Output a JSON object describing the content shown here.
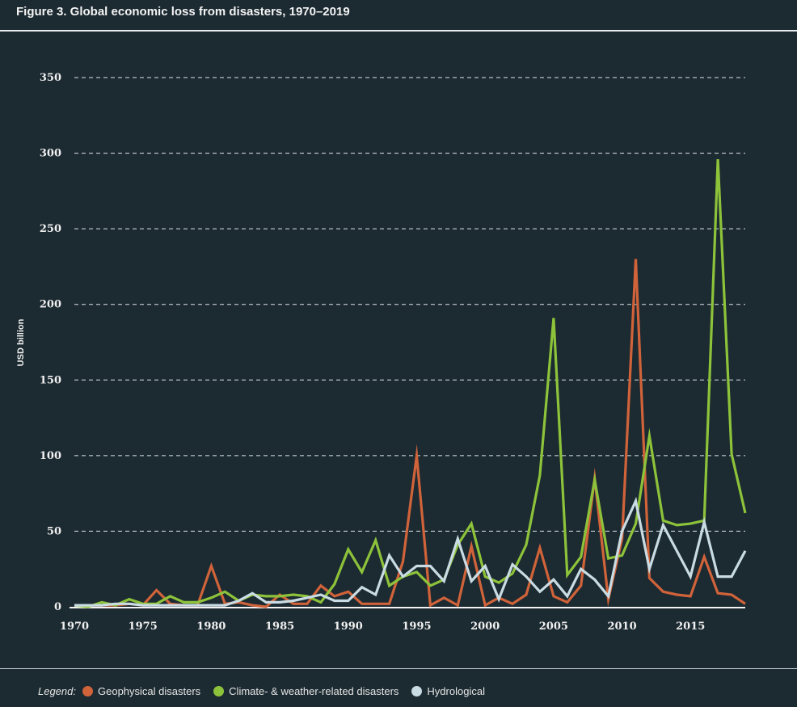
{
  "header": {
    "title": "Figure 3. Global economic loss from disasters, 1970–2019"
  },
  "legend": {
    "label": "Legend:",
    "items": [
      {
        "name": "Geophysical disasters",
        "color": "#d0633a"
      },
      {
        "name": "Climate- & weather-related disasters",
        "color": "#8dc33a"
      },
      {
        "name": "Hydrological",
        "color": "#c9dbe3"
      }
    ]
  },
  "chart_data": {
    "type": "line",
    "title": "Figure 3. Global economic loss from disasters, 1970–2019",
    "xlabel": "",
    "ylabel": "USD billion",
    "ylim": [
      0,
      350
    ],
    "yticks": [
      0,
      50,
      100,
      150,
      200,
      250,
      300,
      350
    ],
    "xlim": [
      1970,
      2019
    ],
    "xticks": [
      1970,
      1975,
      1980,
      1985,
      1990,
      1995,
      2000,
      2005,
      2010,
      2015
    ],
    "grid": "horizontal-dashed",
    "legend_position": "bottom",
    "x": [
      1970,
      1971,
      1972,
      1973,
      1974,
      1975,
      1976,
      1977,
      1978,
      1979,
      1980,
      1981,
      1982,
      1983,
      1984,
      1985,
      1986,
      1987,
      1988,
      1989,
      1990,
      1991,
      1992,
      1993,
      1994,
      1995,
      1996,
      1997,
      1998,
      1999,
      2000,
      2001,
      2002,
      2003,
      2004,
      2005,
      2006,
      2007,
      2008,
      2009,
      2010,
      2011,
      2012,
      2013,
      2014,
      2015,
      2016,
      2017,
      2018,
      2019
    ],
    "series": [
      {
        "name": "Geophysical disasters",
        "color": "#d0633a",
        "values": [
          1,
          1,
          1,
          1,
          2,
          1,
          11,
          2,
          1,
          1,
          27,
          2,
          3,
          1,
          0,
          8,
          2,
          2,
          14,
          7,
          10,
          2,
          2,
          2,
          30,
          100,
          1,
          6,
          1,
          40,
          1,
          6,
          2,
          8,
          39,
          7,
          3,
          14,
          85,
          5,
          45,
          230,
          19,
          10,
          8,
          7,
          33,
          9,
          8,
          2
        ]
      },
      {
        "name": "Climate- & weather-related disasters",
        "color": "#8dc33a",
        "values": [
          1,
          0,
          3,
          1,
          5,
          2,
          2,
          7,
          3,
          3,
          6,
          10,
          4,
          8,
          7,
          7,
          8,
          7,
          3,
          15,
          38,
          23,
          44,
          14,
          20,
          23,
          14,
          18,
          41,
          55,
          20,
          16,
          22,
          41,
          87,
          191,
          21,
          33,
          84,
          32,
          34,
          55,
          113,
          57,
          54,
          55,
          57,
          296,
          101,
          62
        ]
      },
      {
        "name": "Hydrological",
        "color": "#c9dbe3",
        "values": [
          1,
          1,
          1,
          2,
          2,
          1,
          1,
          1,
          1,
          1,
          1,
          1,
          4,
          9,
          3,
          3,
          4,
          6,
          8,
          4,
          4,
          13,
          8,
          34,
          20,
          27,
          27,
          17,
          45,
          17,
          27,
          5,
          28,
          20,
          10,
          18,
          7,
          25,
          18,
          7,
          50,
          70,
          25,
          54,
          37,
          20,
          56,
          20,
          20,
          37
        ]
      }
    ]
  }
}
